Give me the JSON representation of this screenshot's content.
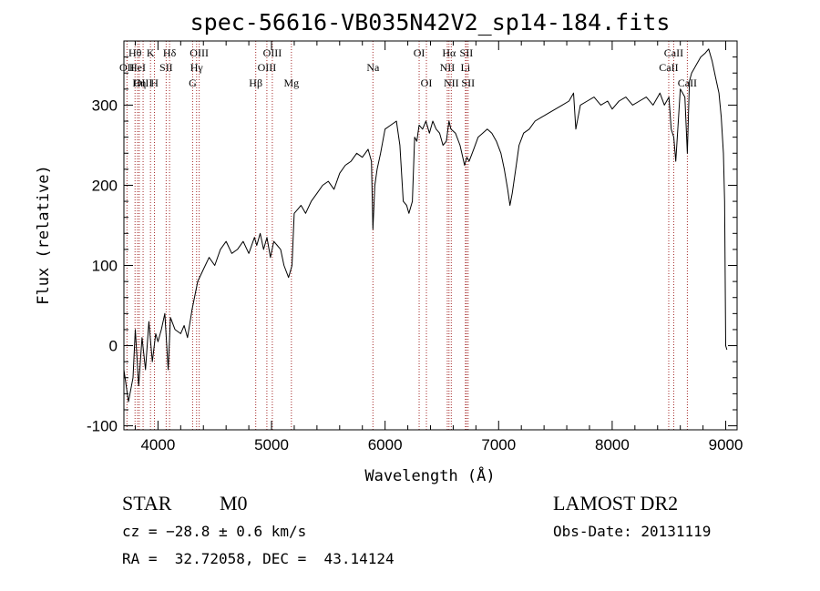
{
  "chart_data": {
    "type": "line",
    "title": "spec-56616-VB035N42V2_sp14-184.fits",
    "xlabel": "Wavelength (Å)",
    "ylabel": "Flux (relative)",
    "xlim": [
      3700,
      9100
    ],
    "ylim": [
      -105,
      380
    ],
    "x_ticks": [
      4000,
      5000,
      6000,
      7000,
      8000,
      9000
    ],
    "y_ticks": [
      -100,
      0,
      100,
      200,
      300
    ],
    "grid": false,
    "series": [
      {
        "x": [
          3700,
          3740,
          3780,
          3800,
          3830,
          3860,
          3890,
          3920,
          3950,
          3980,
          4000,
          4030,
          4060,
          4090,
          4110,
          4150,
          4200,
          4230,
          4260,
          4300,
          4350,
          4400,
          4450,
          4500,
          4550,
          4600,
          4650,
          4700,
          4750,
          4800,
          4850,
          4870,
          4900,
          4930,
          4960,
          4990,
          5020,
          5050,
          5080,
          5110,
          5150,
          5180,
          5200,
          5230,
          5260,
          5300,
          5350,
          5400,
          5450,
          5500,
          5550,
          5600,
          5650,
          5700,
          5750,
          5800,
          5850,
          5880,
          5893,
          5910,
          5930,
          5960,
          6000,
          6050,
          6100,
          6130,
          6160,
          6190,
          6210,
          6240,
          6260,
          6280,
          6300,
          6330,
          6360,
          6390,
          6420,
          6450,
          6480,
          6510,
          6540,
          6563,
          6580,
          6620,
          6660,
          6700,
          6720,
          6740,
          6780,
          6820,
          6860,
          6900,
          6940,
          6980,
          7020,
          7050,
          7080,
          7100,
          7120,
          7150,
          7180,
          7220,
          7270,
          7320,
          7380,
          7440,
          7500,
          7560,
          7620,
          7660,
          7680,
          7720,
          7780,
          7840,
          7900,
          7960,
          8000,
          8060,
          8120,
          8180,
          8240,
          8300,
          8360,
          8420,
          8460,
          8500,
          8520,
          8542,
          8560,
          8600,
          8640,
          8662,
          8680,
          8700,
          8740,
          8780,
          8820,
          8850,
          8880,
          8910,
          8940,
          8960,
          8980,
          8990,
          9000,
          9010
        ],
        "values": [
          -30,
          -70,
          -40,
          20,
          -50,
          10,
          -30,
          30,
          -20,
          15,
          5,
          20,
          40,
          -30,
          35,
          20,
          15,
          25,
          10,
          45,
          80,
          95,
          110,
          100,
          120,
          130,
          115,
          120,
          130,
          115,
          135,
          125,
          140,
          120,
          135,
          110,
          130,
          125,
          120,
          100,
          85,
          100,
          165,
          170,
          175,
          165,
          180,
          190,
          200,
          205,
          195,
          215,
          225,
          230,
          240,
          235,
          245,
          230,
          145,
          200,
          220,
          240,
          270,
          275,
          280,
          250,
          180,
          175,
          165,
          180,
          260,
          255,
          275,
          270,
          280,
          265,
          280,
          270,
          265,
          250,
          255,
          280,
          270,
          265,
          250,
          225,
          235,
          230,
          245,
          260,
          265,
          270,
          265,
          255,
          240,
          220,
          195,
          175,
          190,
          220,
          250,
          265,
          270,
          280,
          285,
          290,
          295,
          300,
          305,
          315,
          270,
          300,
          305,
          310,
          300,
          305,
          295,
          305,
          310,
          300,
          305,
          310,
          300,
          315,
          300,
          310,
          270,
          260,
          230,
          320,
          310,
          240,
          330,
          340,
          350,
          360,
          365,
          370,
          355,
          335,
          315,
          285,
          240,
          180,
          0,
          -5
        ]
      }
    ],
    "line_markers": [
      {
        "label": "Hθ",
        "wl": 3798,
        "row": 1
      },
      {
        "label": "OII",
        "wl": 3727,
        "row": 2
      },
      {
        "label": "HeI",
        "wl": 3820,
        "row": 2
      },
      {
        "label": "OIII",
        "wl": 3869,
        "row": 3
      },
      {
        "label": "Hη",
        "wl": 3835,
        "row": 3
      },
      {
        "label": "K",
        "wl": 3934,
        "row": 1
      },
      {
        "label": "SII",
        "wl": 4072,
        "row": 2
      },
      {
        "label": "H",
        "wl": 3969,
        "row": 3
      },
      {
        "label": "Hδ",
        "wl": 4102,
        "row": 1
      },
      {
        "label": "OIII",
        "wl": 4363,
        "row": 1
      },
      {
        "label": "Hγ",
        "wl": 4340,
        "row": 2
      },
      {
        "label": "G",
        "wl": 4305,
        "row": 3
      },
      {
        "label": "Hβ",
        "wl": 4861,
        "row": 3
      },
      {
        "label": "OIII",
        "wl": 5007,
        "row": 1
      },
      {
        "label": "OIII",
        "wl": 4959,
        "row": 2
      },
      {
        "label": "Mg",
        "wl": 5175,
        "row": 3
      },
      {
        "label": "Na",
        "wl": 5893,
        "row": 2
      },
      {
        "label": "OI",
        "wl": 6300,
        "row": 1
      },
      {
        "label": "OI",
        "wl": 6364,
        "row": 3
      },
      {
        "label": "Hα",
        "wl": 6563,
        "row": 1
      },
      {
        "label": "NII",
        "wl": 6548,
        "row": 2
      },
      {
        "label": "NII",
        "wl": 6583,
        "row": 3
      },
      {
        "label": "SII",
        "wl": 6716,
        "row": 1
      },
      {
        "label": "Li",
        "wl": 6708,
        "row": 2
      },
      {
        "label": "SII",
        "wl": 6731,
        "row": 3
      },
      {
        "label": "CaII",
        "wl": 8542,
        "row": 1
      },
      {
        "label": "CaII",
        "wl": 8498,
        "row": 2
      },
      {
        "label": "CaII",
        "wl": 8662,
        "row": 3
      }
    ],
    "marker_color": "#a52a2a"
  },
  "info": {
    "object_class": "STAR",
    "subclass": "M0",
    "survey": "LAMOST DR2",
    "cz": "cz = −28.8 ± 0.6 km/s",
    "obs_date": "Obs-Date: 20131119",
    "coords": "RA =  32.72058, DEC =  43.14124"
  }
}
